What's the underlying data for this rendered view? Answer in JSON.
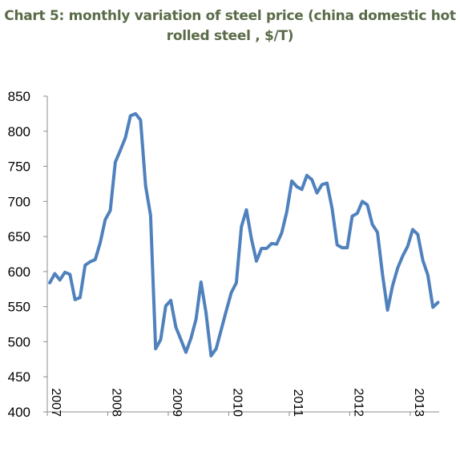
{
  "title_line1": "Chart 5: monthly variation of steel price (china domestic hot",
  "title_line2": "rolled steel , $/T)",
  "chart_data": {
    "type": "line",
    "title": "Chart 5: monthly variation of steel price (china domestic hot rolled steel , $/T)",
    "xlabel": "",
    "ylabel": "",
    "ylim": [
      400,
      850
    ],
    "yticks": [
      "400",
      "450",
      "500",
      "550",
      "600",
      "650",
      "700",
      "750",
      "800",
      "850"
    ],
    "xticks": [
      "2007",
      "2008",
      "2009",
      "2010",
      "2011",
      "2012",
      "2013"
    ],
    "grid": false,
    "legend": "none",
    "line_color": "#4f81bd",
    "x_start": "2007-01",
    "x_step": "month",
    "values": [
      584,
      597,
      588,
      599,
      596,
      560,
      563,
      609,
      614,
      617,
      641,
      674,
      687,
      756,
      773,
      791,
      822,
      825,
      816,
      722,
      680,
      490,
      503,
      551,
      559,
      521,
      503,
      485,
      505,
      532,
      585,
      541,
      480,
      490,
      517,
      544,
      570,
      584,
      664,
      688,
      647,
      615,
      633,
      633,
      640,
      639,
      655,
      685,
      729,
      721,
      717,
      737,
      731,
      712,
      724,
      726,
      690,
      638,
      634,
      634,
      679,
      683,
      700,
      695,
      667,
      656,
      596,
      545,
      580,
      605,
      622,
      636,
      660,
      653,
      616,
      595,
      549,
      556
    ]
  }
}
